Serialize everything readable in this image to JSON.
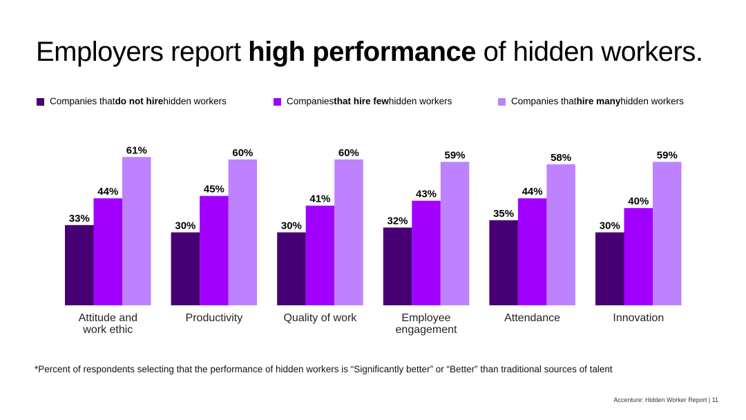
{
  "title": {
    "prefix": "Employers report ",
    "bold": "high performance",
    "suffix": " of hidden workers."
  },
  "legend": [
    {
      "pre": "Companies that ",
      "bold": "do not hire",
      "post": " hidden workers",
      "color": "#460073"
    },
    {
      "pre": "Companies ",
      "bold": "that hire few",
      "post": " hidden workers",
      "color": "#a100ff"
    },
    {
      "pre": "Companies that ",
      "bold": "hire many",
      "post": " hidden workers",
      "color": "#be82ff"
    }
  ],
  "chart_data": {
    "type": "bar",
    "categories": [
      [
        "Attitude and",
        "work ethic"
      ],
      [
        "Productivity"
      ],
      [
        "Quality of work"
      ],
      [
        "Employee",
        "engagement"
      ],
      [
        "Attendance"
      ],
      [
        "Innovation"
      ]
    ],
    "series": [
      {
        "name": "Companies that do not hire hidden workers",
        "color": "#460073",
        "values": [
          33,
          30,
          30,
          32,
          35,
          30
        ]
      },
      {
        "name": "Companies that hire few hidden workers",
        "color": "#a100ff",
        "values": [
          44,
          45,
          41,
          43,
          44,
          40
        ]
      },
      {
        "name": "Companies that hire many hidden workers",
        "color": "#be82ff",
        "values": [
          61,
          60,
          60,
          59,
          58,
          59
        ]
      }
    ],
    "value_suffix": "%",
    "ylim": [
      0,
      70
    ],
    "grid": false
  },
  "footnote": "*Percent of respondents selecting that the performance of hidden workers is “Significantly better” or “Better” than traditional sources of talent",
  "footer": "Accenture: Hidden Worker Report  |  11"
}
